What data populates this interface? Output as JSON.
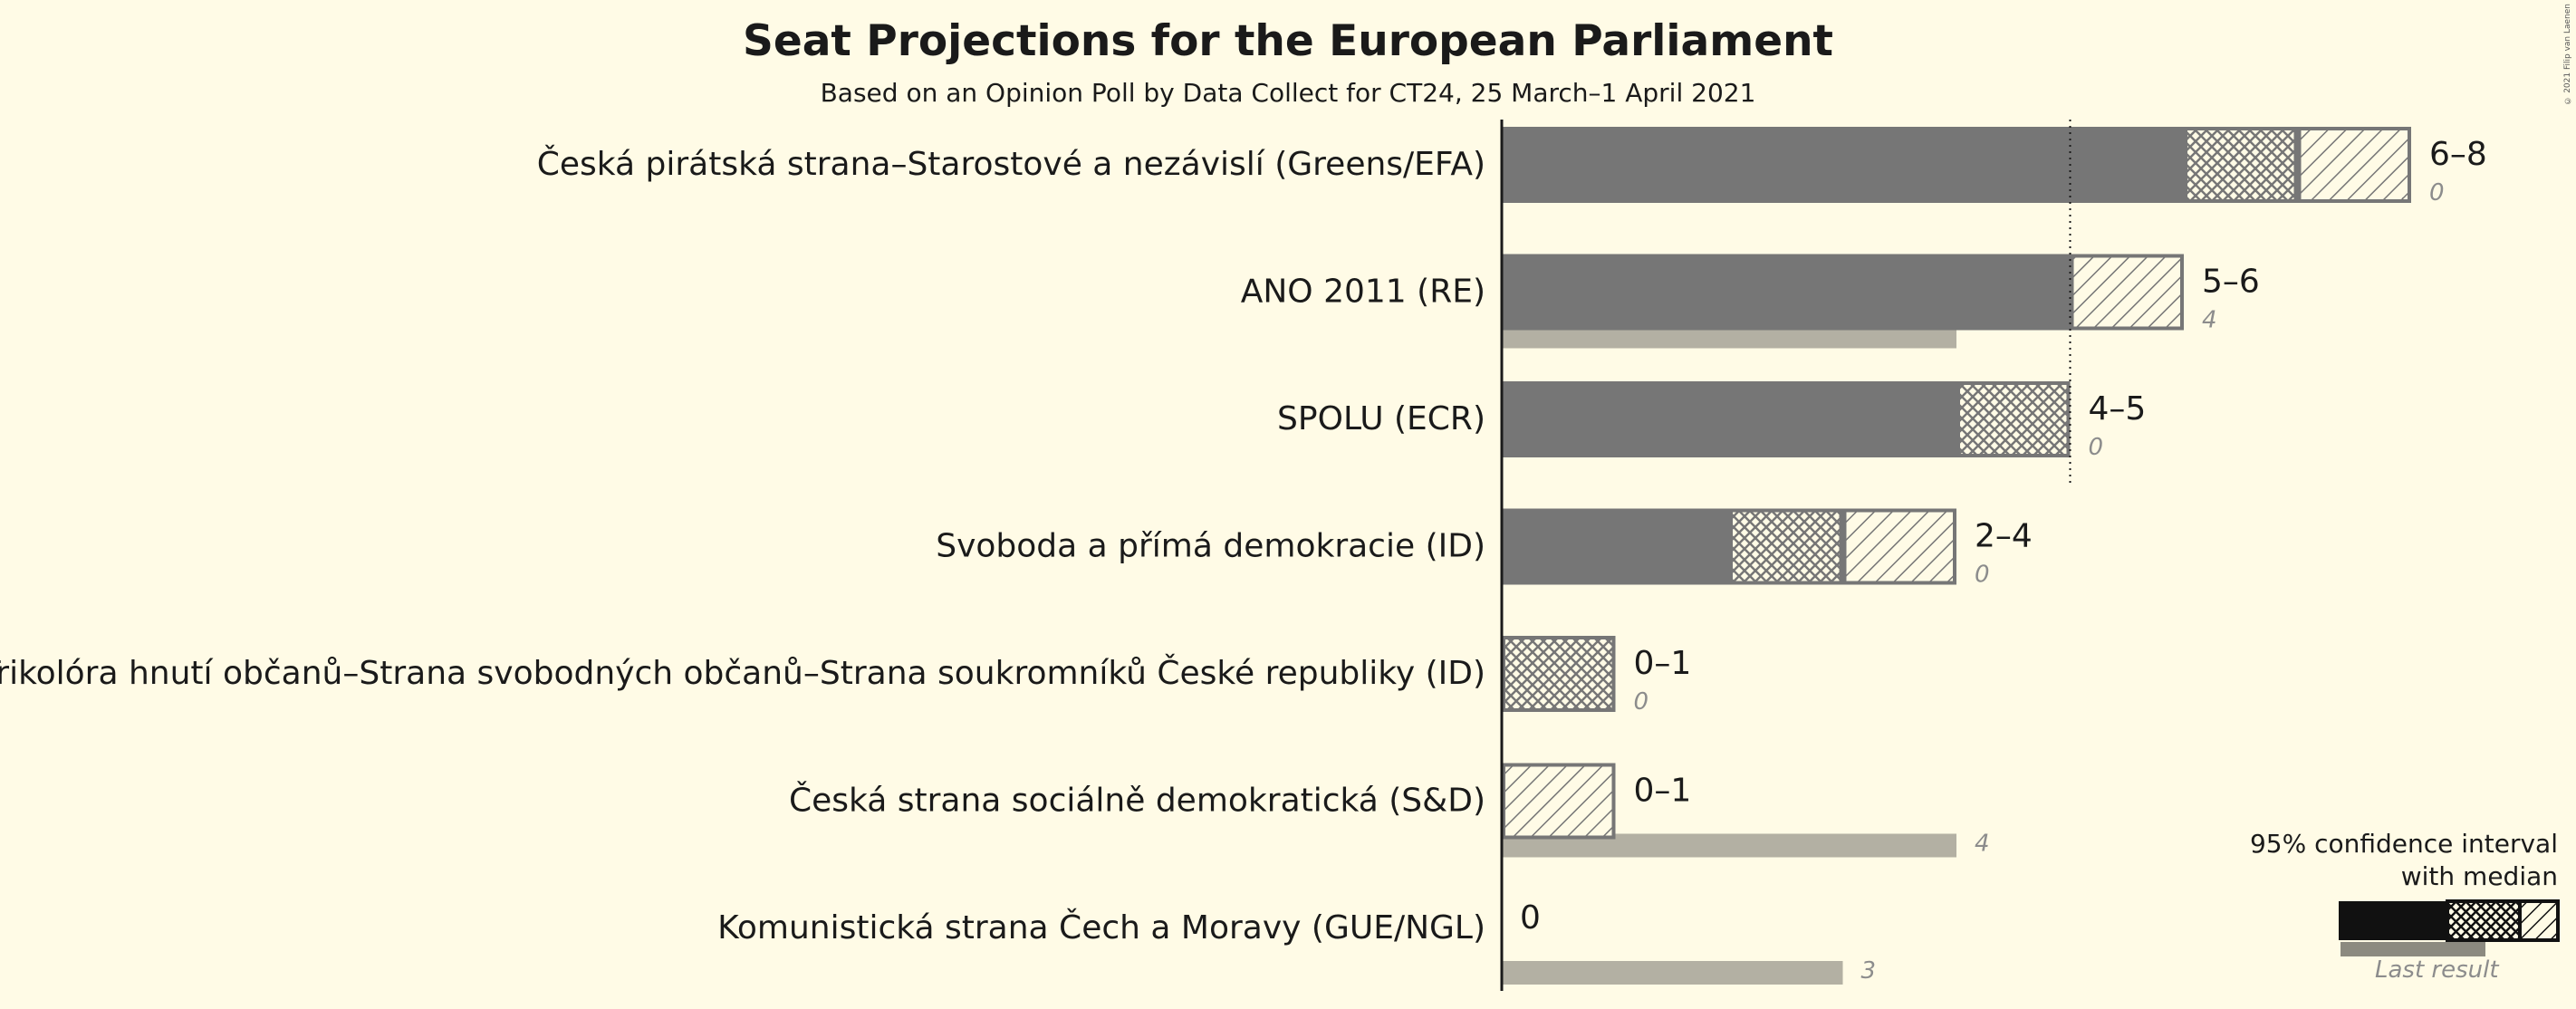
{
  "title": "Seat Projections for the European Parliament",
  "subtitle": "Based on an Opinion Poll by Data Collect for CT24, 25 March–1 April 2021",
  "copyright": "© 2021 Filip van Laenen",
  "legend": {
    "title_line1": "95% confidence interval",
    "title_line2": "with median",
    "last_result": "Last result"
  },
  "colors": {
    "background": "#fffbe6",
    "bar": "#767676",
    "last_result": "#b3b0a3",
    "legend_dark": "#111111"
  },
  "chart_data": {
    "type": "bar",
    "orientation": "horizontal",
    "majority_line_seats": 5,
    "categories": [
      "Česká pirátská strana–Starostové a nezávislí (Greens/EFA)",
      "ANO 2011 (RE)",
      "SPOLU (ECR)",
      "Svoboda a přímá demokracie (ID)",
      "Trikolóra hnutí občanů–Strana svobodných občanů–Strana soukromníků České republiky (ID)",
      "Česká strana sociálně demokratická (S&D)",
      "Komunistická strana Čech a Moravy (GUE/NGL)"
    ],
    "series": [
      {
        "name": "95% confidence interval",
        "lower": [
          6,
          5,
          4,
          2,
          0,
          0,
          0
        ],
        "upper": [
          8,
          6,
          5,
          4,
          1,
          1,
          0
        ]
      },
      {
        "name": "median",
        "values": [
          7,
          5,
          5,
          3,
          1,
          0,
          0
        ]
      },
      {
        "name": "Last result",
        "values": [
          0,
          4,
          0,
          0,
          0,
          4,
          3
        ]
      }
    ],
    "range_labels": [
      "6–8",
      "5–6",
      "4–5",
      "2–4",
      "0–1",
      "0–1",
      "0"
    ],
    "last_labels": [
      "0",
      "4",
      "0",
      "0",
      "0",
      "4",
      "3"
    ]
  }
}
